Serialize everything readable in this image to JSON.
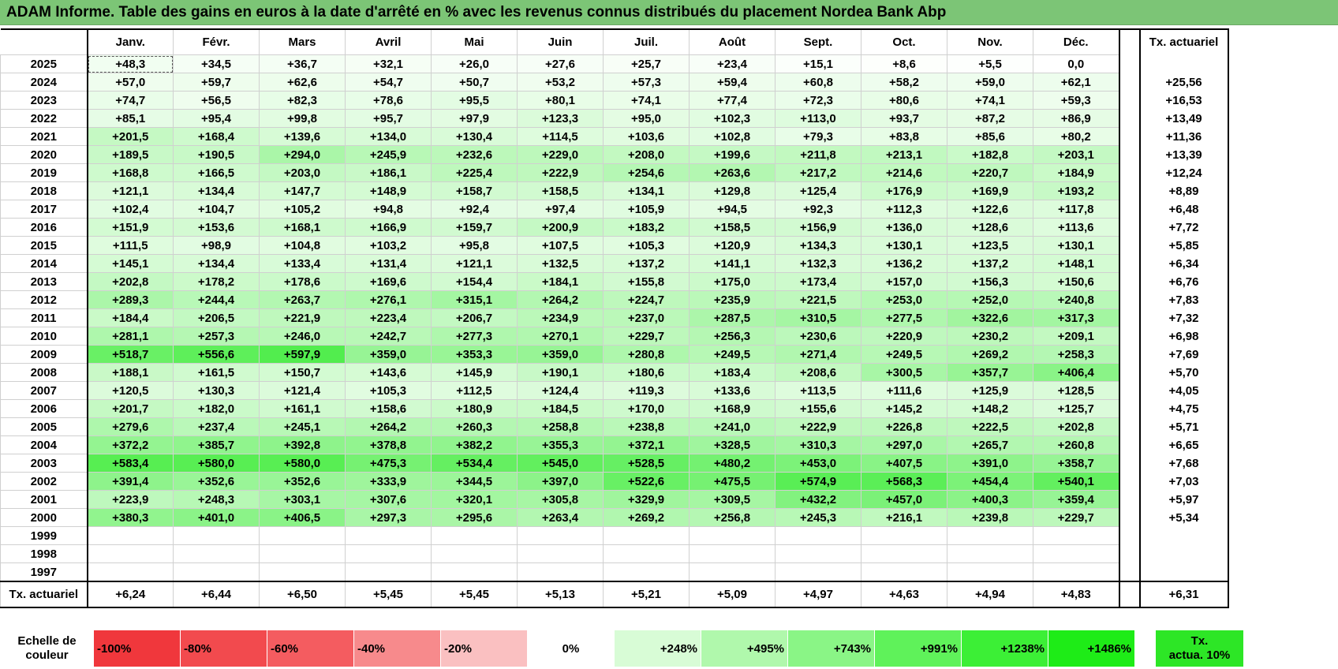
{
  "title": "ADAM Informe. Table des gains en euros à la date d'arrêté en % avec les revenus connus distribués du placement Nordea Bank Abp",
  "chart_data": {
    "type": "table",
    "columns": [
      "Janv.",
      "Févr.",
      "Mars",
      "Avril",
      "Mai",
      "Juin",
      "Juil.",
      "Août",
      "Sept.",
      "Oct.",
      "Nov.",
      "Déc."
    ],
    "rate_header": "Tx. actuariel",
    "rows": [
      {
        "year": "2025",
        "values": [
          "+48,3",
          "+34,5",
          "+36,7",
          "+32,1",
          "+26,0",
          "+27,6",
          "+25,7",
          "+23,4",
          "+15,1",
          "+8,6",
          "+5,5",
          "0,0"
        ],
        "rate": ""
      },
      {
        "year": "2024",
        "values": [
          "+57,0",
          "+59,7",
          "+62,6",
          "+54,7",
          "+50,7",
          "+53,2",
          "+57,3",
          "+59,4",
          "+60,8",
          "+58,2",
          "+59,0",
          "+62,1"
        ],
        "rate": "+25,56"
      },
      {
        "year": "2023",
        "values": [
          "+74,7",
          "+56,5",
          "+82,3",
          "+78,6",
          "+95,5",
          "+80,1",
          "+74,1",
          "+77,4",
          "+72,3",
          "+80,6",
          "+74,1",
          "+59,3"
        ],
        "rate": "+16,53"
      },
      {
        "year": "2022",
        "values": [
          "+85,1",
          "+95,4",
          "+99,8",
          "+95,7",
          "+97,9",
          "+123,3",
          "+95,0",
          "+102,3",
          "+113,0",
          "+93,7",
          "+87,2",
          "+86,9"
        ],
        "rate": "+13,49"
      },
      {
        "year": "2021",
        "values": [
          "+201,5",
          "+168,4",
          "+139,6",
          "+134,0",
          "+130,4",
          "+114,5",
          "+103,6",
          "+102,8",
          "+79,3",
          "+83,8",
          "+85,6",
          "+80,2"
        ],
        "rate": "+11,36"
      },
      {
        "year": "2020",
        "values": [
          "+189,5",
          "+190,5",
          "+294,0",
          "+245,9",
          "+232,6",
          "+229,0",
          "+208,0",
          "+199,6",
          "+211,8",
          "+213,1",
          "+182,8",
          "+203,1"
        ],
        "rate": "+13,39"
      },
      {
        "year": "2019",
        "values": [
          "+168,8",
          "+166,5",
          "+203,0",
          "+186,1",
          "+225,4",
          "+222,9",
          "+254,6",
          "+263,6",
          "+217,2",
          "+214,6",
          "+220,7",
          "+184,9"
        ],
        "rate": "+12,24"
      },
      {
        "year": "2018",
        "values": [
          "+121,1",
          "+134,4",
          "+147,7",
          "+148,9",
          "+158,7",
          "+158,5",
          "+134,1",
          "+129,8",
          "+125,4",
          "+176,9",
          "+169,9",
          "+193,2"
        ],
        "rate": "+8,89"
      },
      {
        "year": "2017",
        "values": [
          "+102,4",
          "+104,7",
          "+105,2",
          "+94,8",
          "+92,4",
          "+97,4",
          "+105,9",
          "+94,5",
          "+92,3",
          "+112,3",
          "+122,6",
          "+117,8"
        ],
        "rate": "+6,48"
      },
      {
        "year": "2016",
        "values": [
          "+151,9",
          "+153,6",
          "+168,1",
          "+166,9",
          "+159,7",
          "+200,9",
          "+183,2",
          "+158,5",
          "+156,9",
          "+136,0",
          "+128,6",
          "+113,6"
        ],
        "rate": "+7,72"
      },
      {
        "year": "2015",
        "values": [
          "+111,5",
          "+98,9",
          "+104,8",
          "+103,2",
          "+95,8",
          "+107,5",
          "+105,3",
          "+120,9",
          "+134,3",
          "+130,1",
          "+123,5",
          "+130,1"
        ],
        "rate": "+5,85"
      },
      {
        "year": "2014",
        "values": [
          "+145,1",
          "+134,4",
          "+133,4",
          "+131,4",
          "+121,1",
          "+132,5",
          "+137,2",
          "+141,1",
          "+132,3",
          "+136,2",
          "+137,2",
          "+148,1"
        ],
        "rate": "+6,34"
      },
      {
        "year": "2013",
        "values": [
          "+202,8",
          "+178,2",
          "+178,6",
          "+169,6",
          "+154,4",
          "+184,1",
          "+155,8",
          "+175,0",
          "+173,4",
          "+157,0",
          "+156,3",
          "+150,6"
        ],
        "rate": "+6,76"
      },
      {
        "year": "2012",
        "values": [
          "+289,3",
          "+244,4",
          "+263,7",
          "+276,1",
          "+315,1",
          "+264,2",
          "+224,7",
          "+235,9",
          "+221,5",
          "+253,0",
          "+252,0",
          "+240,8"
        ],
        "rate": "+7,83"
      },
      {
        "year": "2011",
        "values": [
          "+184,4",
          "+206,5",
          "+221,9",
          "+223,4",
          "+206,7",
          "+234,9",
          "+237,0",
          "+287,5",
          "+310,5",
          "+277,5",
          "+322,6",
          "+317,3"
        ],
        "rate": "+7,32"
      },
      {
        "year": "2010",
        "values": [
          "+281,1",
          "+257,3",
          "+246,0",
          "+242,7",
          "+277,3",
          "+270,1",
          "+229,7",
          "+256,3",
          "+230,6",
          "+220,9",
          "+230,2",
          "+209,1"
        ],
        "rate": "+6,98"
      },
      {
        "year": "2009",
        "values": [
          "+518,7",
          "+556,6",
          "+597,9",
          "+359,0",
          "+353,3",
          "+359,0",
          "+280,8",
          "+249,5",
          "+271,4",
          "+249,5",
          "+269,2",
          "+258,3"
        ],
        "rate": "+7,69"
      },
      {
        "year": "2008",
        "values": [
          "+188,1",
          "+161,5",
          "+150,7",
          "+143,6",
          "+145,9",
          "+190,1",
          "+180,6",
          "+183,4",
          "+208,6",
          "+300,5",
          "+357,7",
          "+406,4"
        ],
        "rate": "+5,70"
      },
      {
        "year": "2007",
        "values": [
          "+120,5",
          "+130,3",
          "+121,4",
          "+105,3",
          "+112,5",
          "+124,4",
          "+119,3",
          "+133,6",
          "+113,5",
          "+111,6",
          "+125,9",
          "+128,5"
        ],
        "rate": "+4,05"
      },
      {
        "year": "2006",
        "values": [
          "+201,7",
          "+182,0",
          "+161,1",
          "+158,6",
          "+180,9",
          "+184,5",
          "+170,0",
          "+168,9",
          "+155,6",
          "+145,2",
          "+148,2",
          "+125,7"
        ],
        "rate": "+4,75"
      },
      {
        "year": "2005",
        "values": [
          "+279,6",
          "+237,4",
          "+245,1",
          "+264,2",
          "+260,3",
          "+258,8",
          "+238,8",
          "+241,0",
          "+222,9",
          "+226,8",
          "+222,5",
          "+202,8"
        ],
        "rate": "+5,71"
      },
      {
        "year": "2004",
        "values": [
          "+372,2",
          "+385,7",
          "+392,8",
          "+378,8",
          "+382,2",
          "+355,3",
          "+372,1",
          "+328,5",
          "+310,3",
          "+297,0",
          "+265,7",
          "+260,8"
        ],
        "rate": "+6,65"
      },
      {
        "year": "2003",
        "values": [
          "+583,4",
          "+580,0",
          "+580,0",
          "+475,3",
          "+534,4",
          "+545,0",
          "+528,5",
          "+480,2",
          "+453,0",
          "+407,5",
          "+391,0",
          "+358,7"
        ],
        "rate": "+7,68"
      },
      {
        "year": "2002",
        "values": [
          "+391,4",
          "+352,6",
          "+352,6",
          "+333,9",
          "+344,5",
          "+397,0",
          "+522,6",
          "+475,5",
          "+574,9",
          "+568,3",
          "+454,4",
          "+540,1"
        ],
        "rate": "+7,03"
      },
      {
        "year": "2001",
        "values": [
          "+223,9",
          "+248,3",
          "+303,1",
          "+307,6",
          "+320,1",
          "+305,8",
          "+329,9",
          "+309,5",
          "+432,2",
          "+457,0",
          "+400,3",
          "+359,4"
        ],
        "rate": "+5,97"
      },
      {
        "year": "2000",
        "values": [
          "+380,3",
          "+401,0",
          "+406,5",
          "+297,3",
          "+295,6",
          "+263,4",
          "+269,2",
          "+256,8",
          "+245,3",
          "+216,1",
          "+239,8",
          "+229,7"
        ],
        "rate": "+5,34"
      },
      {
        "year": "1999",
        "values": [
          "",
          "",
          "",
          "",
          "",
          "",
          "",
          "",
          "",
          "",
          "",
          ""
        ],
        "rate": ""
      },
      {
        "year": "1998",
        "values": [
          "",
          "",
          "",
          "",
          "",
          "",
          "",
          "",
          "",
          "",
          "",
          ""
        ],
        "rate": ""
      },
      {
        "year": "1997",
        "values": [
          "",
          "",
          "",
          "",
          "",
          "",
          "",
          "",
          "",
          "",
          "",
          ""
        ],
        "rate": ""
      }
    ],
    "footer": {
      "label": "Tx. actuariel",
      "values": [
        "+6,24",
        "+6,44",
        "+6,50",
        "+5,45",
        "+5,45",
        "+5,13",
        "+5,21",
        "+5,09",
        "+4,97",
        "+4,63",
        "+4,94",
        "+4,83"
      ],
      "rate": "+6,31"
    }
  },
  "scale": {
    "label_line1": "Echelle de",
    "label_line2": "couleur",
    "steps": [
      {
        "text": "-100%",
        "color": "#f0373c",
        "kind": "neg"
      },
      {
        "text": "-80%",
        "color": "#f24a4e",
        "kind": "neg"
      },
      {
        "text": "-60%",
        "color": "#f45c60",
        "kind": "neg"
      },
      {
        "text": "-40%",
        "color": "#f78a8c",
        "kind": "neg"
      },
      {
        "text": "-20%",
        "color": "#fac0c1",
        "kind": "neg"
      },
      {
        "text": "0%",
        "color": "#ffffff",
        "kind": "zero"
      },
      {
        "text": "+248%",
        "color": "#d8fcd6",
        "kind": "pos"
      },
      {
        "text": "+495%",
        "color": "#b0f8ac",
        "kind": "pos"
      },
      {
        "text": "+743%",
        "color": "#8af586",
        "kind": "pos"
      },
      {
        "text": "+991%",
        "color": "#5ff25a",
        "kind": "pos"
      },
      {
        "text": "+1238%",
        "color": "#3cef36",
        "kind": "pos"
      },
      {
        "text": "+1486%",
        "color": "#1eec17",
        "kind": "pos"
      }
    ],
    "actua_line1": "Tx.",
    "actua_line2": "actua. 10%",
    "actua_color": "#2de626"
  },
  "colors": {
    "title_bg": "#7cc576",
    "neutral": "#ffffff",
    "pos_max": "#2ee826"
  }
}
